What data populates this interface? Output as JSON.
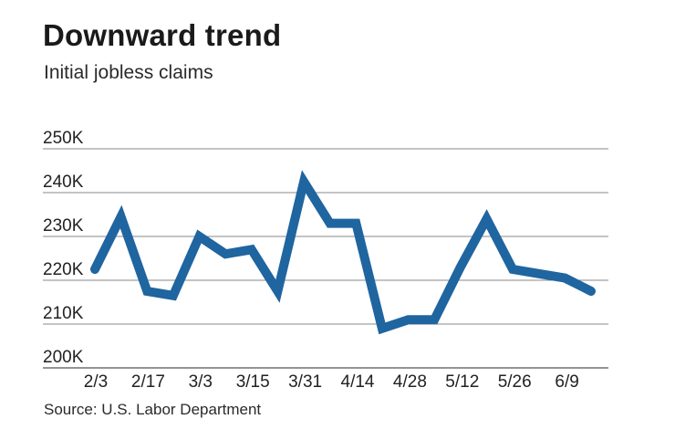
{
  "header": {
    "title": "Downward trend",
    "subtitle": "Initial jobless claims"
  },
  "footer": {
    "source": "Source: U.S. Labor Department"
  },
  "colors": {
    "line": "#1f65a0",
    "grid": "#888888",
    "text": "#222222"
  },
  "chart_data": {
    "type": "line",
    "title": "Downward trend",
    "subtitle": "Initial jobless claims",
    "xlabel": "",
    "ylabel": "",
    "ylim": [
      200,
      250
    ],
    "y_ticks": [
      200,
      210,
      220,
      230,
      240,
      250
    ],
    "y_tick_labels": [
      "200K",
      "210K",
      "220K",
      "230K",
      "240K",
      "250K"
    ],
    "x_tick_labels": [
      "2/3",
      "2/17",
      "3/3",
      "3/15",
      "3/31",
      "4/14",
      "4/28",
      "5/12",
      "5/26",
      "6/9"
    ],
    "grid": true,
    "legend": "none",
    "series": [
      {
        "values": [
          222.5,
          234.5,
          217.5,
          216.5,
          230,
          226,
          227,
          217.5,
          242.5,
          233,
          233,
          209,
          211,
          211,
          223,
          234,
          222.5,
          221.5,
          220.5,
          217.5
        ]
      }
    ]
  }
}
